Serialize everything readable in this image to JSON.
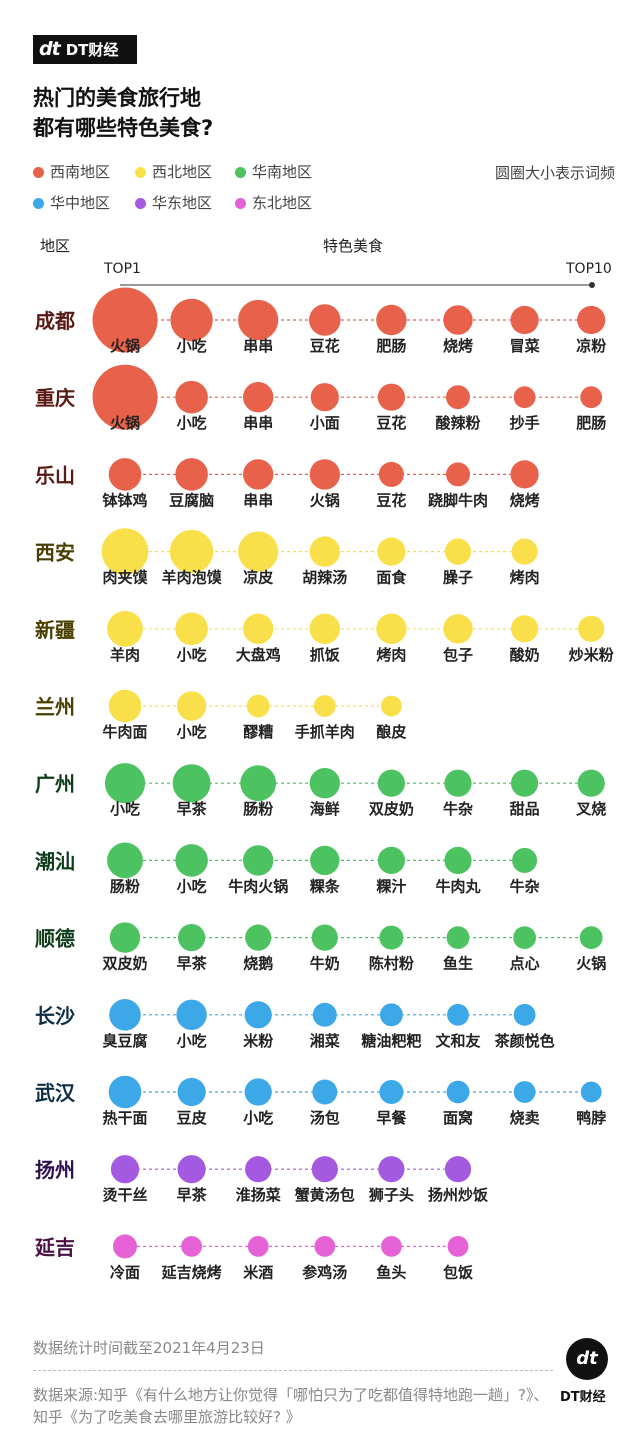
{
  "brand": {
    "logo_mark": "dt",
    "name": "DT财经"
  },
  "title_lines": [
    "热门的美食旅行地",
    "都有哪些特色美食?"
  ],
  "legend": [
    {
      "label": "西南地区",
      "color": "#E8614A"
    },
    {
      "label": "西北地区",
      "color": "#F9E04A"
    },
    {
      "label": "华南地区",
      "color": "#4CC261"
    },
    {
      "label": "华中地区",
      "color": "#3DA8E8"
    },
    {
      "label": "华东地区",
      "color": "#A35AE0"
    },
    {
      "label": "东北地区",
      "color": "#E462D6"
    }
  ],
  "size_note": "圆圈大小表示词频",
  "header": {
    "region": "地区",
    "foods": "特色美食",
    "top_first": "TOP1",
    "top_last": "TOP10"
  },
  "chart_data": {
    "type": "bubble-rank",
    "size_encodes": "词频 (relative frequency, 0-1)",
    "rows": [
      {
        "city": "成都",
        "region": "西南地区",
        "color": "#E8614A",
        "title_color": "#5a1a14",
        "foods": [
          "火锅",
          "小吃",
          "串串",
          "豆花",
          "肥肠",
          "烧烤",
          "冒菜",
          "凉粉"
        ],
        "freq": [
          1.0,
          0.58,
          0.54,
          0.38,
          0.36,
          0.34,
          0.32,
          0.32
        ]
      },
      {
        "city": "重庆",
        "region": "西南地区",
        "color": "#E8614A",
        "title_color": "#5a1a14",
        "foods": [
          "火锅",
          "小吃",
          "串串",
          "小面",
          "豆花",
          "酸辣粉",
          "抄手",
          "肥肠"
        ],
        "freq": [
          1.0,
          0.4,
          0.36,
          0.32,
          0.3,
          0.24,
          0.2,
          0.2
        ]
      },
      {
        "city": "乐山",
        "region": "西南地区",
        "color": "#E8614A",
        "title_color": "#5a1a14",
        "foods": [
          "钵钵鸡",
          "豆腐脑",
          "串串",
          "火锅",
          "豆花",
          "跷脚牛肉",
          "烧烤"
        ],
        "freq": [
          0.4,
          0.4,
          0.36,
          0.36,
          0.26,
          0.24,
          0.32
        ]
      },
      {
        "city": "西安",
        "region": "西北地区",
        "color": "#F9E04A",
        "title_color": "#4a3f00",
        "foods": [
          "肉夹馍",
          "羊肉泡馍",
          "凉皮",
          "胡辣汤",
          "面食",
          "臊子",
          "烤肉"
        ],
        "freq": [
          0.66,
          0.6,
          0.54,
          0.36,
          0.32,
          0.28,
          0.28
        ]
      },
      {
        "city": "新疆",
        "region": "西北地区",
        "color": "#F9E04A",
        "title_color": "#4a3f00",
        "foods": [
          "羊肉",
          "小吃",
          "大盘鸡",
          "抓饭",
          "烤肉",
          "包子",
          "酸奶",
          "炒米粉"
        ],
        "freq": [
          0.46,
          0.4,
          0.36,
          0.36,
          0.36,
          0.34,
          0.3,
          0.28
        ]
      },
      {
        "city": "兰州",
        "region": "西北地区",
        "color": "#F9E04A",
        "title_color": "#4a3f00",
        "foods": [
          "牛肉面",
          "小吃",
          "醪糟",
          "手抓羊肉",
          "酿皮"
        ],
        "freq": [
          0.4,
          0.34,
          0.22,
          0.2,
          0.18
        ]
      },
      {
        "city": "广州",
        "region": "华南地区",
        "color": "#4CC261",
        "title_color": "#0f3d1a",
        "foods": [
          "小吃",
          "早茶",
          "肠粉",
          "海鲜",
          "双皮奶",
          "牛杂",
          "甜品",
          "叉烧"
        ],
        "freq": [
          0.54,
          0.5,
          0.46,
          0.36,
          0.3,
          0.3,
          0.3,
          0.3
        ]
      },
      {
        "city": "潮汕",
        "region": "华南地区",
        "color": "#4CC261",
        "title_color": "#0f3d1a",
        "foods": [
          "肠粉",
          "小吃",
          "牛肉火锅",
          "粿条",
          "粿汁",
          "牛肉丸",
          "牛杂"
        ],
        "freq": [
          0.46,
          0.4,
          0.36,
          0.34,
          0.3,
          0.3,
          0.26
        ]
      },
      {
        "city": "顺德",
        "region": "华南地区",
        "color": "#4CC261",
        "title_color": "#0f3d1a",
        "foods": [
          "双皮奶",
          "早茶",
          "烧鹅",
          "牛奶",
          "陈村粉",
          "鱼生",
          "点心",
          "火锅"
        ],
        "freq": [
          0.36,
          0.3,
          0.28,
          0.28,
          0.24,
          0.22,
          0.22,
          0.22
        ]
      },
      {
        "city": "长沙",
        "region": "华中地区",
        "color": "#3DA8E8",
        "title_color": "#0d2f45",
        "foods": [
          "臭豆腐",
          "小吃",
          "米粉",
          "湘菜",
          "糖油粑粑",
          "文和友",
          "茶颜悦色"
        ],
        "freq": [
          0.38,
          0.36,
          0.3,
          0.24,
          0.22,
          0.2,
          0.2
        ]
      },
      {
        "city": "武汉",
        "region": "华中地区",
        "color": "#3DA8E8",
        "title_color": "#0d2f45",
        "foods": [
          "热干面",
          "豆皮",
          "小吃",
          "汤包",
          "早餐",
          "面窝",
          "烧卖",
          "鸭脖"
        ],
        "freq": [
          0.4,
          0.32,
          0.3,
          0.26,
          0.24,
          0.22,
          0.2,
          0.18
        ]
      },
      {
        "city": "扬州",
        "region": "华东地区",
        "color": "#A35AE0",
        "title_color": "#2f1050",
        "foods": [
          "烫干丝",
          "早茶",
          "淮扬菜",
          "蟹黄汤包",
          "狮子头",
          "扬州炒饭"
        ],
        "freq": [
          0.32,
          0.32,
          0.28,
          0.28,
          0.28,
          0.28
        ]
      },
      {
        "city": "延吉",
        "region": "东北地区",
        "color": "#E462D6",
        "title_color": "#4a1044",
        "foods": [
          "冷面",
          "延吉烧烤",
          "米酒",
          "参鸡汤",
          "鱼头",
          "包饭"
        ],
        "freq": [
          0.24,
          0.18,
          0.18,
          0.18,
          0.18,
          0.18
        ]
      }
    ]
  },
  "footer": {
    "stat_time": "数据统计时间截至2021年4月23日",
    "source": "数据来源:知乎《有什么地方让你觉得「哪怕只为了吃都值得特地跑一趟」?》、知乎《为了吃美食去哪里旅游比较好? 》"
  }
}
